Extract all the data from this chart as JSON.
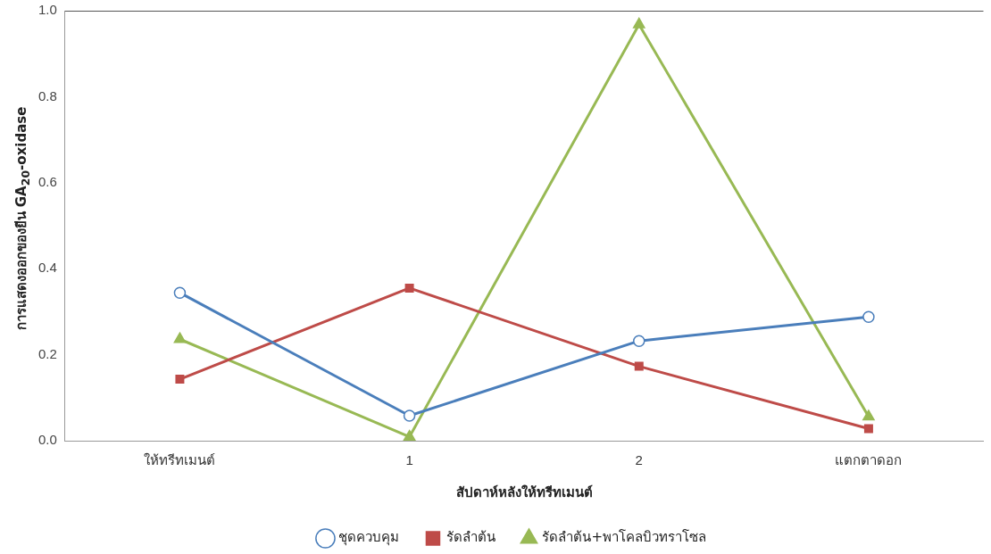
{
  "chart_data": {
    "type": "line",
    "xlabel": "สัปดาห์หลังให้ทรีทเมนต์",
    "ylabel": "การแสดงออกของยีน GA$_{20}$-oxidase",
    "categories": [
      "ให้ทรีทเมนต์",
      "1",
      "2",
      "แตกตาดอก"
    ],
    "series": [
      {
        "name": "ชุดควบคุม",
        "color": "#4a7ebb",
        "marker": "circle",
        "values": [
          0.344,
          0.058,
          0.232,
          0.288
        ]
      },
      {
        "name": "รัดลำต้น",
        "color": "#be4b48",
        "marker": "square",
        "values": [
          0.143,
          0.355,
          0.173,
          0.028
        ]
      },
      {
        "name": "รัดลำต้น+พาโคลบิวทราโซล",
        "color": "#98b954",
        "marker": "triangle",
        "values": [
          0.236,
          0.009,
          0.968,
          0.056
        ]
      }
    ],
    "ylim": [
      0,
      1
    ],
    "yticks": [
      {
        "value": 0,
        "label": "0.0"
      },
      {
        "value": 0.2,
        "label": "0.2"
      },
      {
        "value": 0.4,
        "label": "0.4"
      },
      {
        "value": 0.6,
        "label": "0.6"
      },
      {
        "value": 0.8,
        "label": "0.8"
      },
      {
        "value": 1,
        "label": "1.0"
      }
    ],
    "grid": false,
    "legend": "bottom",
    "line_style": "solid"
  }
}
